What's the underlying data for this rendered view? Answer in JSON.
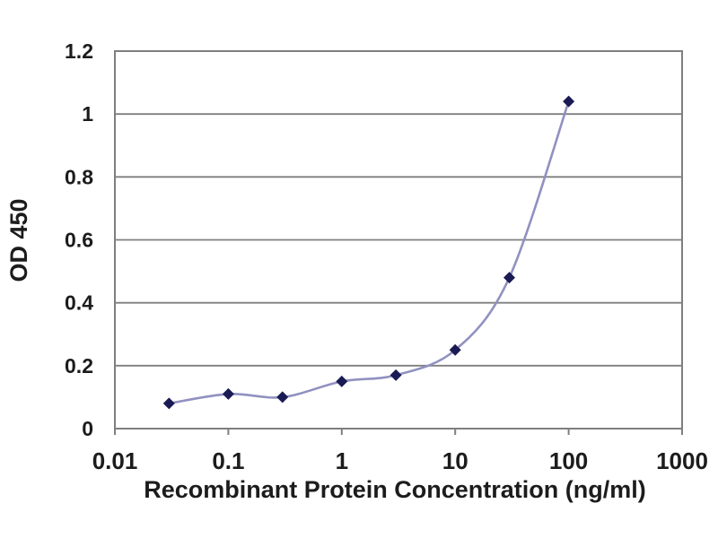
{
  "chart_data": {
    "type": "line",
    "title": "",
    "xlabel": "Recombinant Protein Concentration (ng/ml)",
    "ylabel": "OD 450",
    "x_scale": "log",
    "xlim": [
      0.01,
      1000
    ],
    "ylim": [
      0,
      1.2
    ],
    "x": [
      0.03,
      0.1,
      0.3,
      1,
      3,
      10,
      30,
      100
    ],
    "series": [
      {
        "name": "OD 450",
        "values": [
          0.08,
          0.11,
          0.1,
          0.15,
          0.17,
          0.25,
          0.48,
          1.04
        ]
      }
    ],
    "x_ticks": {
      "values": [
        0.01,
        0.1,
        1,
        10,
        100,
        1000
      ],
      "labels": [
        "0.01",
        "0.1",
        "1",
        "10",
        "100",
        "1000"
      ]
    },
    "y_ticks": {
      "values": [
        0,
        0.2,
        0.4,
        0.6,
        0.8,
        1,
        1.2
      ],
      "labels": [
        "0",
        "0.2",
        "0.4",
        "0.6",
        "0.8",
        "1",
        "1.2"
      ]
    },
    "grid": "horizontal-only",
    "legend": "none",
    "marker": "diamond",
    "line_style": "smoothed",
    "colors": {
      "line": "#9191c1",
      "marker": "#1a1a55",
      "grid": "#7f7f7f",
      "text": "#1c1c1c",
      "background": "#ffffff"
    }
  }
}
